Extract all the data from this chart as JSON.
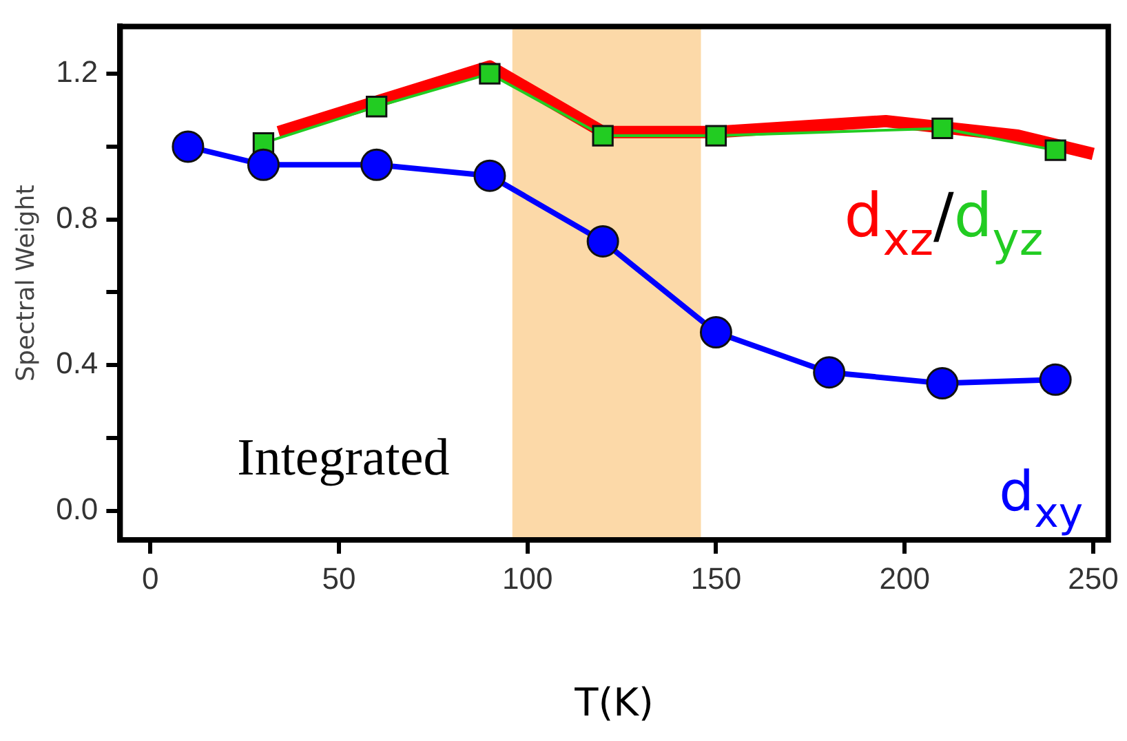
{
  "chart_data": {
    "type": "line",
    "xlabel": "T(K)",
    "ylabel": "Spectral Weight",
    "xlim": [
      -8,
      254
    ],
    "xticks": [
      0,
      50,
      100,
      150,
      200,
      250
    ],
    "ylim": [
      -0.08,
      1.33
    ],
    "yticks": [
      {
        "value": 0,
        "label": "0.0"
      },
      {
        "value": 0.2,
        "label": null
      },
      {
        "value": 0.4,
        "label": "0.4"
      },
      {
        "value": 0.6,
        "label": null
      },
      {
        "value": 0.8,
        "label": "0.8"
      },
      {
        "value": 1.0,
        "label": null
      },
      {
        "value": 1.2,
        "label": "1.2"
      }
    ],
    "grid": false,
    "legend": false,
    "series": [
      {
        "name": "d$_{xy}$",
        "color": "#0000ff",
        "marker": "circle",
        "x": [
          10,
          30,
          60,
          90,
          120,
          150,
          180,
          210,
          240
        ],
        "values": [
          1.0,
          0.95,
          0.95,
          0.92,
          0.74,
          0.49,
          0.38,
          0.35,
          0.36
        ]
      },
      {
        "name": "d$_{yz}$",
        "color": "#22cc22",
        "marker": "square",
        "x": [
          30,
          60,
          90,
          120,
          150,
          210,
          240
        ],
        "values": [
          1.01,
          1.11,
          1.2,
          1.03,
          1.03,
          1.05,
          0.99
        ]
      },
      {
        "name": "d$_{xz}$",
        "color": "#ff0000",
        "marker": "none",
        "x": [
          34,
          90,
          120,
          150,
          195,
          230,
          250
        ],
        "values": [
          1.04,
          1.22,
          1.04,
          1.04,
          1.07,
          1.03,
          0.98
        ]
      }
    ],
    "bands": [
      {
        "axis": "x",
        "from": 96,
        "to": 146,
        "color": "#fcd9a8"
      }
    ],
    "annotations": [
      "Integrated",
      "/"
    ]
  }
}
